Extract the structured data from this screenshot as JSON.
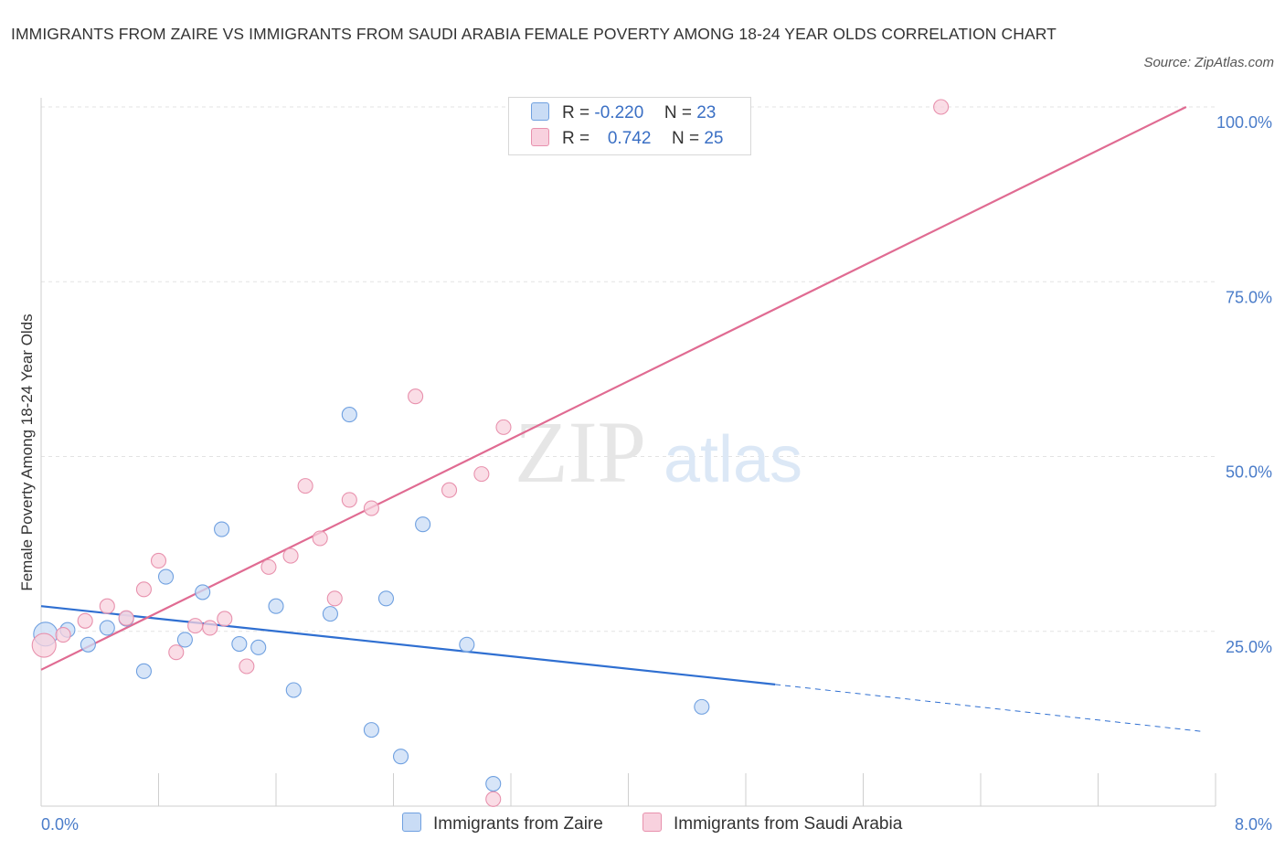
{
  "title": "IMMIGRANTS FROM ZAIRE VS IMMIGRANTS FROM SAUDI ARABIA FEMALE POVERTY AMONG 18-24 YEAR OLDS CORRELATION CHART",
  "source": "Source: ZipAtlas.com",
  "watermark": {
    "zip": "ZIP",
    "atlas": "atlas"
  },
  "legend": {
    "rows": [
      {
        "r_label": "R =",
        "r_value": "-0.220",
        "n_label": "N =",
        "n_value": "23"
      },
      {
        "r_label": "R =",
        "r_value": "0.742",
        "n_label": "N =",
        "n_value": "25"
      }
    ]
  },
  "chart_data": {
    "type": "scatter",
    "xlabel": "",
    "ylabel": "Female Poverty Among 18-24 Year Olds",
    "xlim": [
      0,
      8
    ],
    "ylim": [
      0,
      100
    ],
    "x_tick_labels": [
      "0.0%",
      "8.0%"
    ],
    "y_ticks": [
      {
        "value": 25,
        "label": "25.0%"
      },
      {
        "value": 50,
        "label": "50.0%"
      },
      {
        "value": 75,
        "label": "75.0%"
      },
      {
        "value": 100,
        "label": "100.0%"
      }
    ],
    "grid": true,
    "series": [
      {
        "name": "Immigrants from Zaire",
        "color": "#6fa0e0",
        "fill": "#c9dcf5",
        "line_color": "#2f6fd1",
        "points": [
          [
            0.03,
            24.6
          ],
          [
            0.18,
            25.2
          ],
          [
            0.32,
            23.1
          ],
          [
            0.45,
            25.5
          ],
          [
            0.58,
            26.8
          ],
          [
            0.7,
            19.3
          ],
          [
            0.85,
            32.8
          ],
          [
            0.98,
            23.8
          ],
          [
            1.1,
            30.6
          ],
          [
            1.23,
            39.6
          ],
          [
            1.35,
            23.2
          ],
          [
            1.48,
            22.7
          ],
          [
            1.6,
            28.6
          ],
          [
            1.72,
            16.6
          ],
          [
            1.97,
            27.5
          ],
          [
            2.1,
            56.0
          ],
          [
            2.25,
            10.9
          ],
          [
            2.35,
            29.7
          ],
          [
            2.45,
            7.1
          ],
          [
            2.6,
            40.3
          ],
          [
            2.9,
            23.1
          ],
          [
            3.08,
            3.2
          ],
          [
            4.5,
            14.2
          ]
        ],
        "trend": {
          "x0": 0,
          "y0": 28.6,
          "x1": 5.0,
          "y1": 17.4,
          "dashed_to_x": 7.9,
          "dashed_to_y": 10.7
        }
      },
      {
        "name": "Immigrants from Saudi Arabia",
        "color": "#e891ad",
        "fill": "#f8d1de",
        "line_color": "#e06b92",
        "points": [
          [
            0.02,
            23.0
          ],
          [
            0.15,
            24.5
          ],
          [
            0.3,
            26.5
          ],
          [
            0.45,
            28.6
          ],
          [
            0.58,
            26.9
          ],
          [
            0.7,
            31.0
          ],
          [
            0.8,
            35.1
          ],
          [
            0.92,
            22.0
          ],
          [
            1.05,
            25.8
          ],
          [
            1.15,
            25.5
          ],
          [
            1.25,
            26.8
          ],
          [
            1.4,
            20.0
          ],
          [
            1.55,
            34.2
          ],
          [
            1.7,
            35.8
          ],
          [
            1.8,
            45.8
          ],
          [
            1.9,
            38.3
          ],
          [
            2.0,
            29.7
          ],
          [
            2.1,
            43.8
          ],
          [
            2.25,
            42.6
          ],
          [
            2.55,
            58.6
          ],
          [
            2.78,
            45.2
          ],
          [
            3.0,
            47.5
          ],
          [
            3.08,
            1.0
          ],
          [
            3.15,
            54.2
          ],
          [
            6.13,
            100.0
          ]
        ],
        "trend": {
          "x0": 0,
          "y0": 19.5,
          "x1": 7.8,
          "y1": 100.0
        }
      }
    ]
  }
}
